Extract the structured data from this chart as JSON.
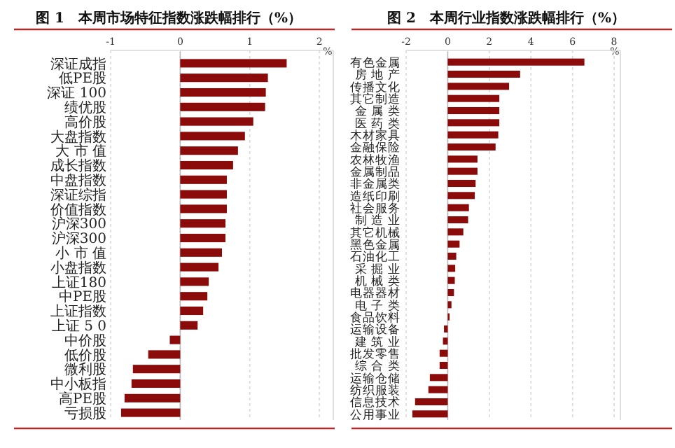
{
  "chart_data": [
    {
      "type": "bar",
      "orientation": "horizontal",
      "title": "图 1　本周市场特征指数涨跌幅排行（%）",
      "xlabel": "%",
      "color": "#8b0a0a",
      "grid": "x",
      "xlim": [
        -1,
        2.2
      ],
      "xticks": [
        -1,
        0,
        1,
        2
      ],
      "categories": [
        "深证成指",
        "低PE股",
        "深证 100",
        "绩优股",
        "高价股",
        "大盘指数",
        "大 市 值",
        "成长指数",
        "中盘指数",
        "深证综指",
        "价值指数",
        "沪深300",
        "沪深300",
        "小 市 值",
        "小盘指数",
        "上证180",
        "中PE股",
        "上证指数",
        "上证 5 0",
        "中价股",
        "低价股",
        "微利股",
        "中小板指",
        "高PE股",
        "亏损股"
      ],
      "values": [
        1.53,
        1.26,
        1.23,
        1.22,
        1.05,
        0.93,
        0.83,
        0.76,
        0.67,
        0.67,
        0.67,
        0.65,
        0.65,
        0.6,
        0.55,
        0.41,
        0.39,
        0.33,
        0.25,
        -0.15,
        -0.46,
        -0.68,
        -0.7,
        -0.8,
        -0.85
      ]
    },
    {
      "type": "bar",
      "orientation": "horizontal",
      "title": "图 2　本周行业指数涨跌幅排行（%）",
      "xlabel": "%",
      "color": "#8b0a0a",
      "grid": "x",
      "xlim": [
        -2,
        8.3
      ],
      "xticks": [
        -2,
        0,
        2,
        4,
        6,
        8
      ],
      "categories": [
        "有色金属",
        "房 地 产",
        "传播文化",
        "其它制造",
        "金 属 类",
        "医 药 类",
        "木材家具",
        "金融保险",
        "农林牧渔",
        "金属制品",
        "非金属类",
        "造纸印刷",
        "社会服务",
        "制 造 业",
        "其它机械",
        "黑色金属",
        "石油化工",
        "采 掘 业",
        "机 械 类",
        "电器器材",
        "电 子 类",
        "食品饮料",
        "运输设备",
        "建 筑 业",
        "批发零售",
        "综 合 类",
        "运输仓储",
        "纺织服装",
        "信息技术",
        "公用事业"
      ],
      "values": [
        6.57,
        3.48,
        2.95,
        2.48,
        2.48,
        2.48,
        2.43,
        2.3,
        1.43,
        1.43,
        1.34,
        1.3,
        1.02,
        0.98,
        0.75,
        0.57,
        0.41,
        0.36,
        0.34,
        0.3,
        0.18,
        0.09,
        -0.18,
        -0.23,
        -0.39,
        -0.39,
        -0.86,
        -0.93,
        -1.57,
        -1.7
      ]
    }
  ]
}
